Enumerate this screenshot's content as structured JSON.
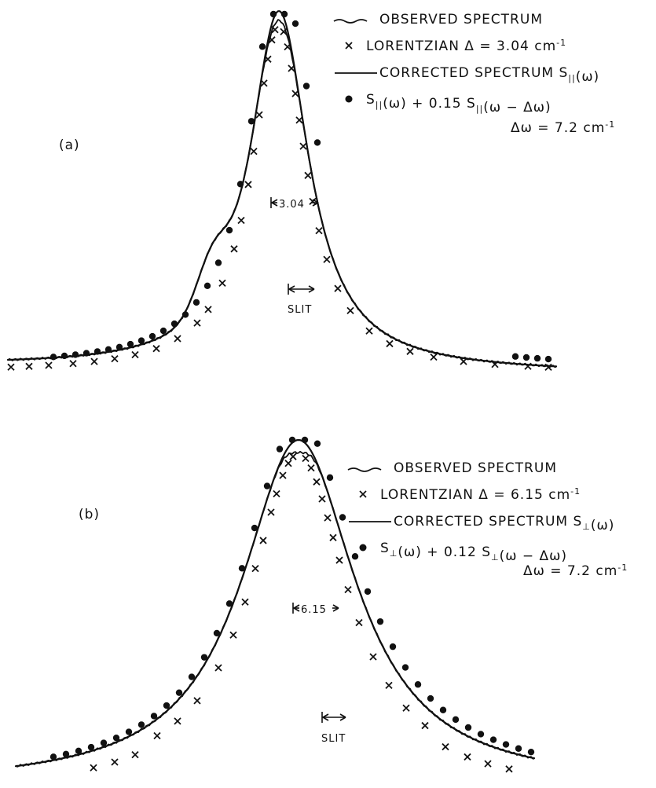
{
  "chart_data": [
    {
      "type": "line",
      "panel_label": "(a)",
      "legend": [
        {
          "symbol": "wavy-line",
          "text": "OBSERVED SPECTRUM"
        },
        {
          "symbol": "x",
          "text": "LORENTZIAN  Δ = 3.04 cm",
          "sup": "-1"
        },
        {
          "symbol": "line",
          "text": "CORRECTED SPECTRUM S",
          "sub": "||",
          "after": "(ω)"
        },
        {
          "symbol": "dot",
          "text": "S",
          "sub": "||",
          "mid": "(ω) + 0.15  S",
          "sub2": "||",
          "after": "(ω − Δω)"
        }
      ],
      "delta_omega": {
        "text": "Δω = 7.2 cm",
        "sup": "-1"
      },
      "width_marker": "3.04",
      "slit_label": "SLIT",
      "gamma": 3.04,
      "secondary_weight": 0.15,
      "delta_omega_value": 7.2,
      "series": [
        {
          "name": "OBSERVED SPECTRUM"
        },
        {
          "name": "LORENTZIAN"
        },
        {
          "name": "CORRECTED SPECTRUM"
        },
        {
          "name": "S(ω) + 0.15 S(ω − Δω)"
        }
      ]
    },
    {
      "type": "line",
      "panel_label": "(b)",
      "legend": [
        {
          "symbol": "wavy-line",
          "text": "OBSERVED SPECTRUM"
        },
        {
          "symbol": "x",
          "text": "LORENTZIAN  Δ = 6.15 cm",
          "sup": "-1"
        },
        {
          "symbol": "line",
          "text": "CORRECTED SPECTRUM S",
          "sub": "⊥",
          "after": "(ω)"
        },
        {
          "symbol": "dot",
          "text": "S",
          "sub": "⊥",
          "mid": "(ω) + 0.12  S",
          "sub2": "⊥",
          "after": "(ω − Δω)"
        }
      ],
      "delta_omega": {
        "text": "Δω = 7.2 cm",
        "sup": "-1"
      },
      "width_marker": "6.15",
      "slit_label": "SLIT",
      "gamma": 6.15,
      "secondary_weight": 0.12,
      "delta_omega_value": 7.2,
      "series": [
        {
          "name": "OBSERVED SPECTRUM"
        },
        {
          "name": "LORENTZIAN"
        },
        {
          "name": "CORRECTED SPECTRUM"
        },
        {
          "name": "S(ω) + 0.12 S(ω − Δω)"
        }
      ]
    }
  ]
}
